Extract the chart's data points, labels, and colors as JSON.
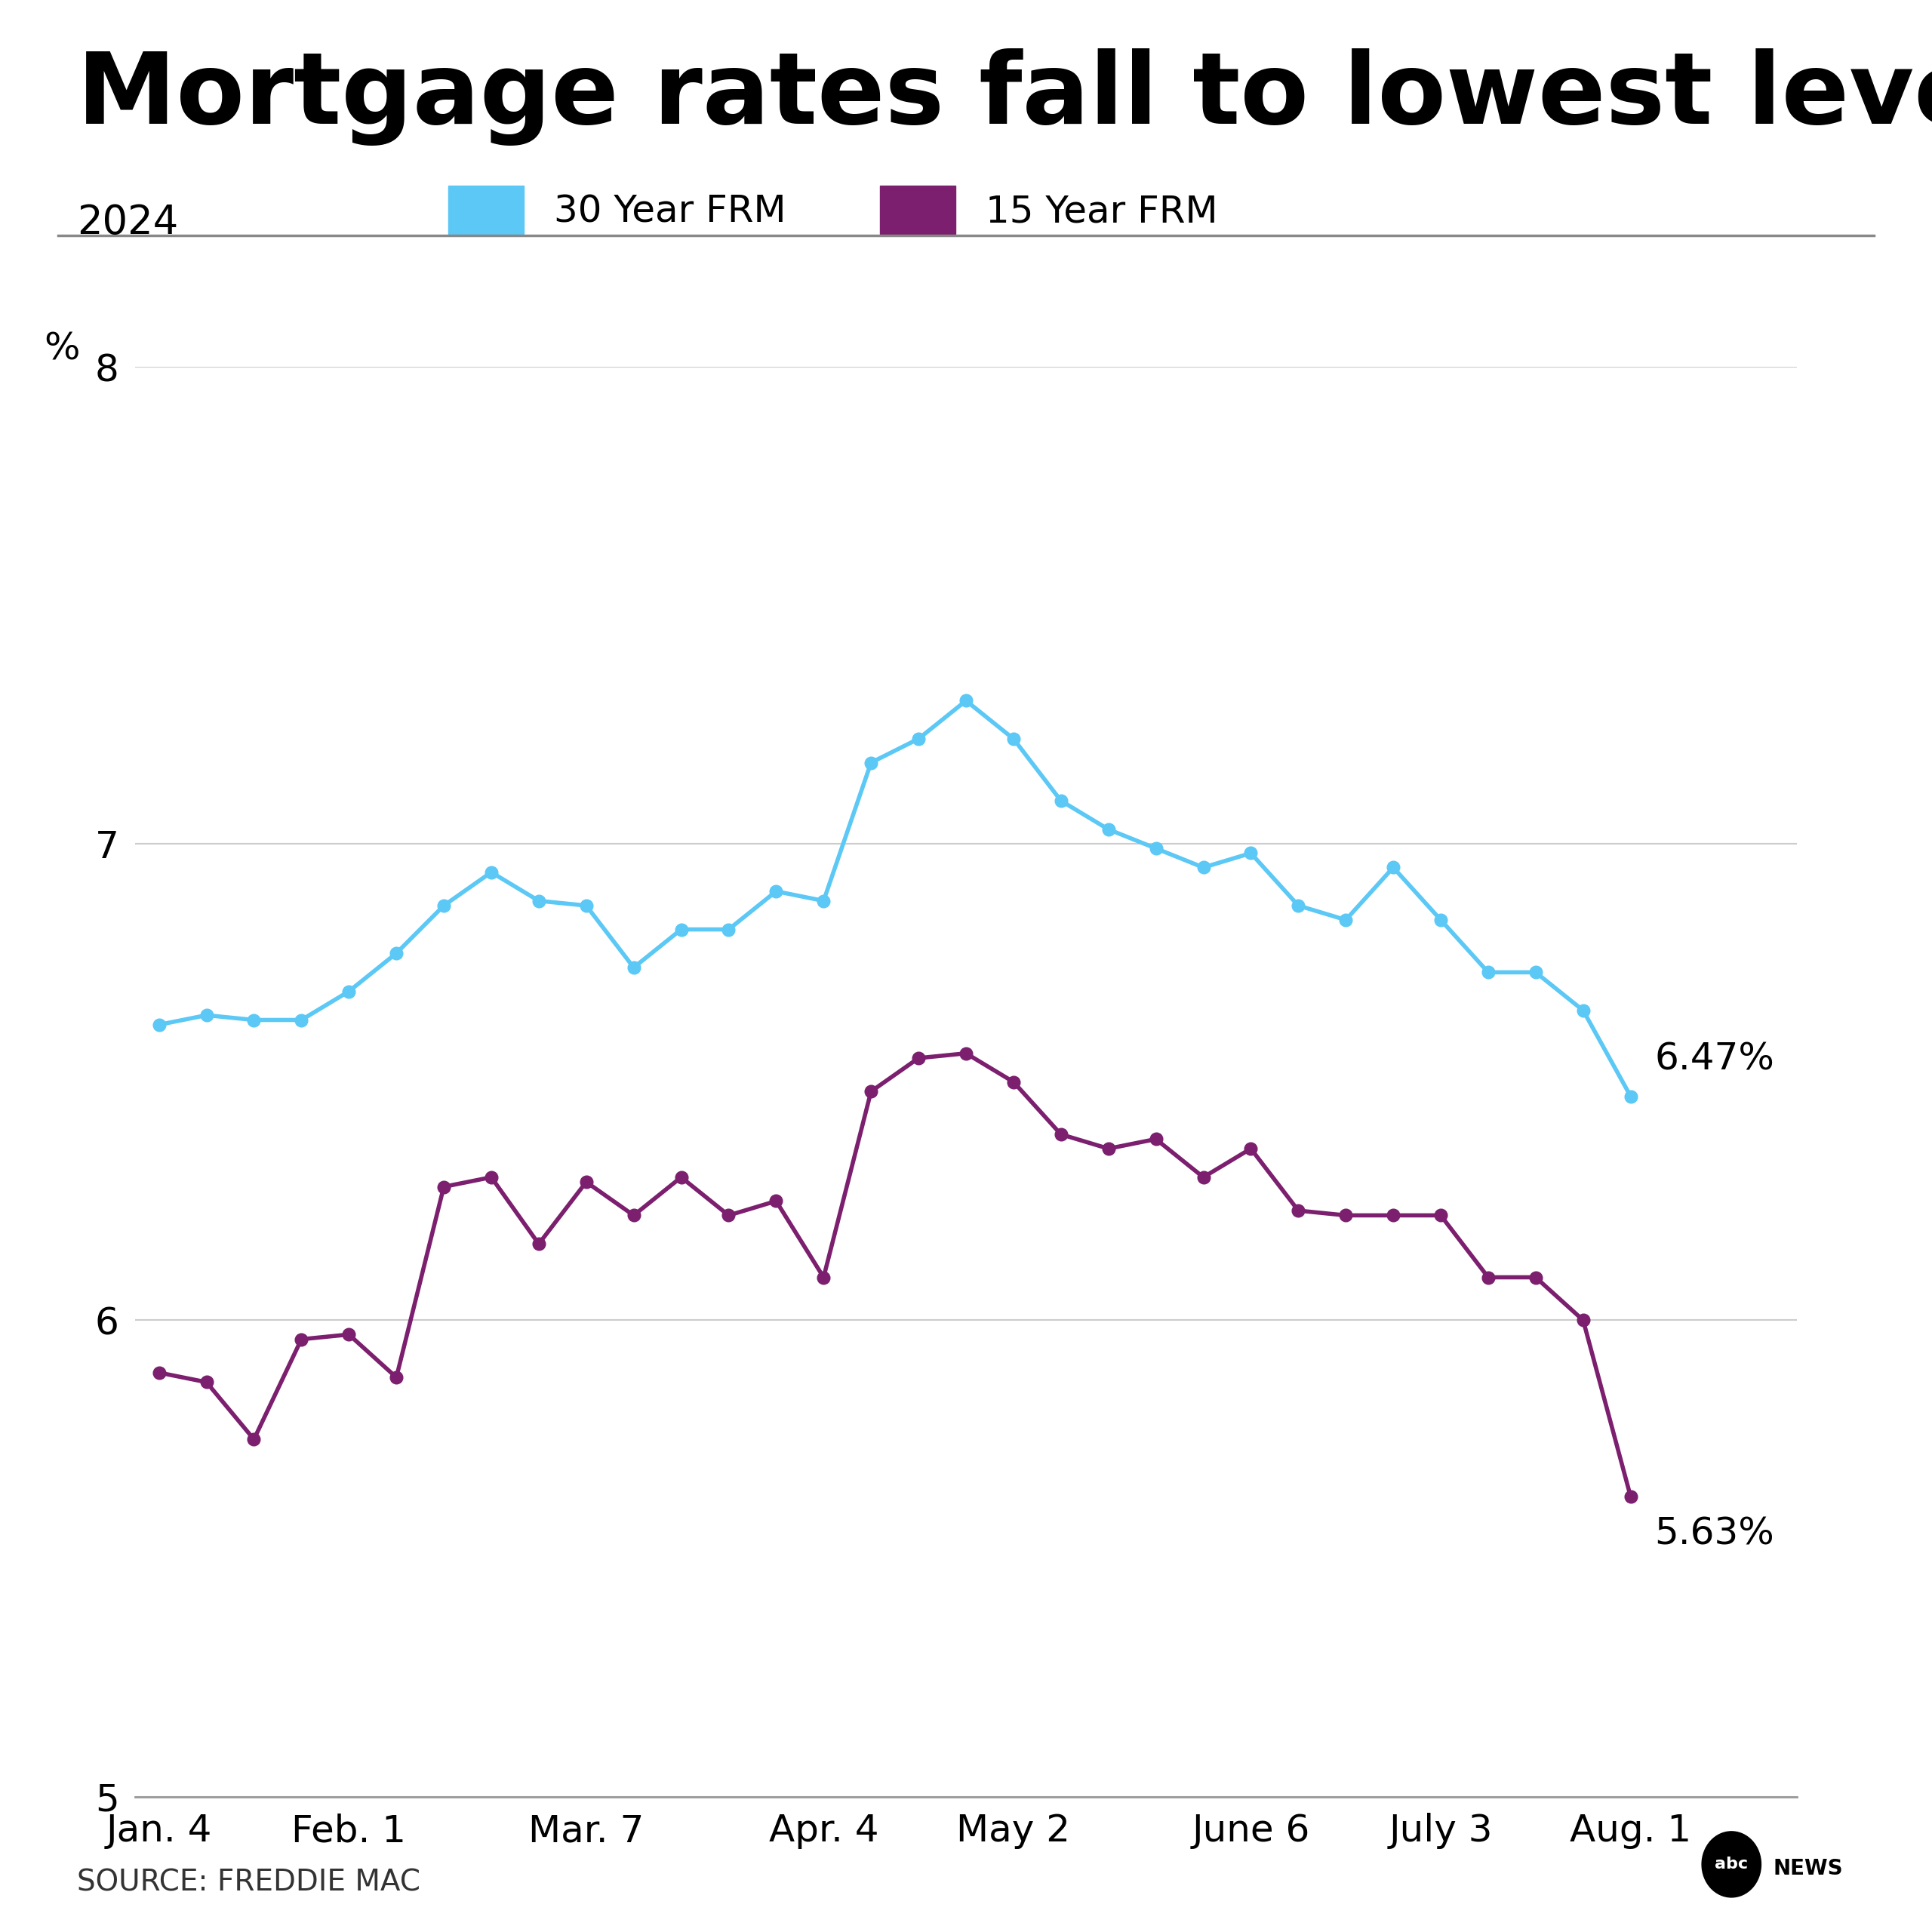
{
  "title": "Mortgage rates fall to lowest level in a year",
  "subtitle": "2024",
  "ylabel": "%",
  "source": "SOURCE: FREDDIE MAC",
  "ylim": [
    5,
    8
  ],
  "yticks": [
    5,
    6,
    7,
    8
  ],
  "background_color": "#ffffff",
  "line_30yr_color": "#5bc8f5",
  "line_15yr_color": "#7b1f6e",
  "legend_30yr_label": "30 Year FRM",
  "legend_15yr_label": "15 Year FRM",
  "label_30yr": "6.47%",
  "label_15yr": "5.63%",
  "x_tick_labels": [
    "Jan. 4",
    "Feb. 1",
    "Mar. 7",
    "Apr. 4",
    "May 2",
    "June 6",
    "July 3",
    "Aug. 1"
  ],
  "x_tick_positions": [
    0,
    4,
    9,
    14,
    18,
    23,
    27,
    31
  ],
  "data_30yr": [
    6.62,
    6.64,
    6.63,
    6.63,
    6.69,
    6.77,
    6.87,
    6.94,
    6.88,
    6.87,
    6.74,
    6.82,
    6.82,
    6.9,
    6.88,
    7.17,
    7.22,
    7.3,
    7.22,
    7.09,
    7.03,
    6.99,
    6.95,
    6.98,
    6.87,
    6.84,
    6.95,
    6.84,
    6.73,
    6.73,
    6.65,
    6.47
  ],
  "data_15yr": [
    5.89,
    5.87,
    5.75,
    5.96,
    5.97,
    5.88,
    6.28,
    6.3,
    6.16,
    6.29,
    6.22,
    6.3,
    6.22,
    6.25,
    6.09,
    6.48,
    6.55,
    6.56,
    6.5,
    6.39,
    6.36,
    6.38,
    6.3,
    6.36,
    6.23,
    6.22,
    6.22,
    6.22,
    6.09,
    6.09,
    6.0,
    5.63
  ],
  "title_fontsize": 95,
  "subtitle_fontsize": 38,
  "tick_fontsize": 36,
  "legend_fontsize": 36,
  "annotation_fontsize": 36,
  "source_fontsize": 28,
  "ylabel_fontsize": 36,
  "linewidth": 4.0,
  "markersize": 12
}
